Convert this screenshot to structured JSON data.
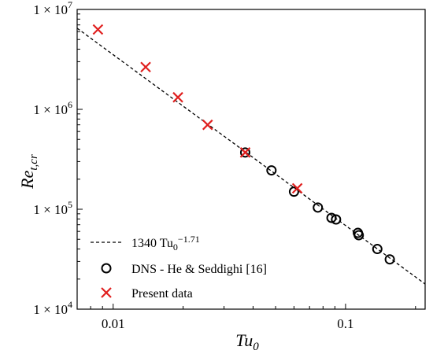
{
  "chart_data": {
    "type": "scatter",
    "x_scale": "log",
    "y_scale": "log",
    "xlim": [
      0.007,
      0.22
    ],
    "ylim": [
      10000,
      10000000
    ],
    "xlabel": {
      "main": "Tu",
      "sub": "0"
    },
    "ylabel": {
      "main": "Re",
      "sub": "t,cr"
    },
    "x_ticks": [
      {
        "value": 0.01,
        "label": "0.01"
      },
      {
        "value": 0.1,
        "label": "0.1"
      }
    ],
    "y_ticks": [
      {
        "value": 10000,
        "mantissa": "1 × 10",
        "exp": "4"
      },
      {
        "value": 100000,
        "mantissa": "1 × 10",
        "exp": "5"
      },
      {
        "value": 1000000,
        "mantissa": "1 × 10",
        "exp": "6"
      },
      {
        "value": 10000000,
        "mantissa": "1 × 10",
        "exp": "7"
      }
    ],
    "grid": false,
    "legend_position": "bottom-left",
    "fit_line": {
      "coefficient": 1340,
      "exponent": -1.71,
      "label_base": "1340 Tu",
      "label_sub": "0",
      "label_sup": "−1.71",
      "color": "#000000",
      "style": "dashed"
    },
    "series": [
      {
        "name": "DNS - He & Seddighi [16]",
        "marker": "circle",
        "color": "#000000",
        "points": [
          {
            "x": 0.037,
            "y": 370000
          },
          {
            "x": 0.048,
            "y": 245000
          },
          {
            "x": 0.06,
            "y": 150000
          },
          {
            "x": 0.076,
            "y": 104000
          },
          {
            "x": 0.087,
            "y": 82000
          },
          {
            "x": 0.091,
            "y": 79000
          },
          {
            "x": 0.113,
            "y": 58000
          },
          {
            "x": 0.114,
            "y": 55000
          },
          {
            "x": 0.137,
            "y": 40000
          },
          {
            "x": 0.155,
            "y": 31500
          }
        ]
      },
      {
        "name": "Present data",
        "marker": "x",
        "color": "#e0201f",
        "points": [
          {
            "x": 0.0086,
            "y": 6300000
          },
          {
            "x": 0.0138,
            "y": 2650000
          },
          {
            "x": 0.019,
            "y": 1320000
          },
          {
            "x": 0.0255,
            "y": 700000
          },
          {
            "x": 0.037,
            "y": 370000
          },
          {
            "x": 0.062,
            "y": 162000
          }
        ]
      }
    ]
  }
}
